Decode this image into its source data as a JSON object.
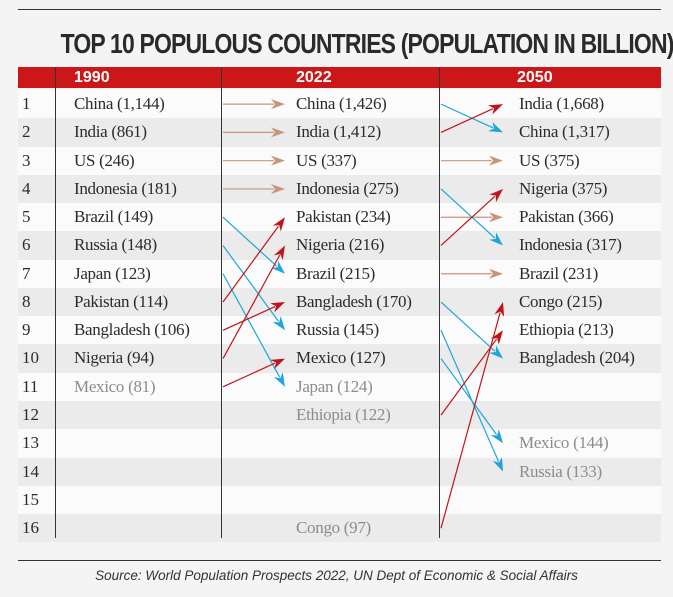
{
  "title": "TOP 10 POPULOUS COUNTRIES (POPULATION IN BILLION)",
  "source": "Source: World Population Prospects 2022, UN Dept of Economic & Social Affairs",
  "ranks": [
    "1",
    "2",
    "3",
    "4",
    "5",
    "6",
    "7",
    "8",
    "9",
    "10",
    "11",
    "12",
    "13",
    "14",
    "15",
    "16"
  ],
  "colors": {
    "header": "#cc1719",
    "same": "#c8957b",
    "down": "#1ea5dd",
    "up": "#c0141c",
    "muted_text": "#8c8c8c"
  },
  "columns": [
    {
      "year": "1990",
      "entries": [
        {
          "rank": 1,
          "label": "China (1,144)"
        },
        {
          "rank": 2,
          "label": "India (861)"
        },
        {
          "rank": 3,
          "label": "US (246)"
        },
        {
          "rank": 4,
          "label": "Indonesia (181)"
        },
        {
          "rank": 5,
          "label": "Brazil (149)"
        },
        {
          "rank": 6,
          "label": "Russia (148)"
        },
        {
          "rank": 7,
          "label": "Japan (123)"
        },
        {
          "rank": 8,
          "label": "Pakistan (114)"
        },
        {
          "rank": 9,
          "label": "Bangladesh (106)"
        },
        {
          "rank": 10,
          "label": "Nigeria (94)"
        },
        {
          "rank": 11,
          "label": "Mexico (81)",
          "muted": true
        }
      ]
    },
    {
      "year": "2022",
      "entries": [
        {
          "rank": 1,
          "label": "China (1,426)"
        },
        {
          "rank": 2,
          "label": "India (1,412)"
        },
        {
          "rank": 3,
          "label": "US (337)"
        },
        {
          "rank": 4,
          "label": "Indonesia (275)"
        },
        {
          "rank": 5,
          "label": "Pakistan (234)"
        },
        {
          "rank": 6,
          "label": "Nigeria (216)"
        },
        {
          "rank": 7,
          "label": "Brazil (215)"
        },
        {
          "rank": 8,
          "label": "Bangladesh (170)"
        },
        {
          "rank": 9,
          "label": "Russia (145)"
        },
        {
          "rank": 10,
          "label": "Mexico (127)"
        },
        {
          "rank": 11,
          "label": "Japan (124)",
          "muted": true
        },
        {
          "rank": 12,
          "label": "Ethiopia (122)",
          "muted": true
        },
        {
          "rank": 16,
          "label": "Congo (97)",
          "muted": true
        }
      ]
    },
    {
      "year": "2050",
      "entries": [
        {
          "rank": 1,
          "label": "India (1,668)"
        },
        {
          "rank": 2,
          "label": "China (1,317)"
        },
        {
          "rank": 3,
          "label": "US (375)"
        },
        {
          "rank": 4,
          "label": "Nigeria (375)"
        },
        {
          "rank": 5,
          "label": "Pakistan (366)"
        },
        {
          "rank": 6,
          "label": "Indonesia (317)"
        },
        {
          "rank": 7,
          "label": "Brazil (231)"
        },
        {
          "rank": 8,
          "label": "Congo (215)"
        },
        {
          "rank": 9,
          "label": "Ethiopia (213)"
        },
        {
          "rank": 10,
          "label": "Bangladesh (204)"
        },
        {
          "rank": 13,
          "label": "Mexico (144)",
          "muted": true
        },
        {
          "rank": 14,
          "label": "Russia (133)",
          "muted": true
        }
      ]
    }
  ],
  "transitions": [
    {
      "from_year": "1990",
      "to_year": "2022",
      "moves": [
        {
          "country": "China",
          "from": 1,
          "to": 1,
          "trend": "same"
        },
        {
          "country": "India",
          "from": 2,
          "to": 2,
          "trend": "same"
        },
        {
          "country": "US",
          "from": 3,
          "to": 3,
          "trend": "same"
        },
        {
          "country": "Indonesia",
          "from": 4,
          "to": 4,
          "trend": "same"
        },
        {
          "country": "Brazil",
          "from": 5,
          "to": 7,
          "trend": "down"
        },
        {
          "country": "Russia",
          "from": 6,
          "to": 9,
          "trend": "down"
        },
        {
          "country": "Japan",
          "from": 7,
          "to": 11,
          "trend": "down"
        },
        {
          "country": "Pakistan",
          "from": 8,
          "to": 5,
          "trend": "up"
        },
        {
          "country": "Bangladesh",
          "from": 9,
          "to": 8,
          "trend": "up"
        },
        {
          "country": "Nigeria",
          "from": 10,
          "to": 6,
          "trend": "up"
        },
        {
          "country": "Mexico",
          "from": 11,
          "to": 10,
          "trend": "up"
        }
      ]
    },
    {
      "from_year": "2022",
      "to_year": "2050",
      "moves": [
        {
          "country": "China",
          "from": 1,
          "to": 2,
          "trend": "down"
        },
        {
          "country": "India",
          "from": 2,
          "to": 1,
          "trend": "up"
        },
        {
          "country": "US",
          "from": 3,
          "to": 3,
          "trend": "same"
        },
        {
          "country": "Indonesia",
          "from": 4,
          "to": 6,
          "trend": "down"
        },
        {
          "country": "Pakistan",
          "from": 5,
          "to": 5,
          "trend": "same"
        },
        {
          "country": "Nigeria",
          "from": 6,
          "to": 4,
          "trend": "up"
        },
        {
          "country": "Brazil",
          "from": 7,
          "to": 7,
          "trend": "same"
        },
        {
          "country": "Bangladesh",
          "from": 8,
          "to": 10,
          "trend": "down"
        },
        {
          "country": "Russia",
          "from": 9,
          "to": 14,
          "trend": "down"
        },
        {
          "country": "Mexico",
          "from": 10,
          "to": 13,
          "trend": "down"
        },
        {
          "country": "Ethiopia",
          "from": 12,
          "to": 9,
          "trend": "up"
        },
        {
          "country": "Congo",
          "from": 16,
          "to": 8,
          "trend": "up"
        }
      ]
    }
  ]
}
